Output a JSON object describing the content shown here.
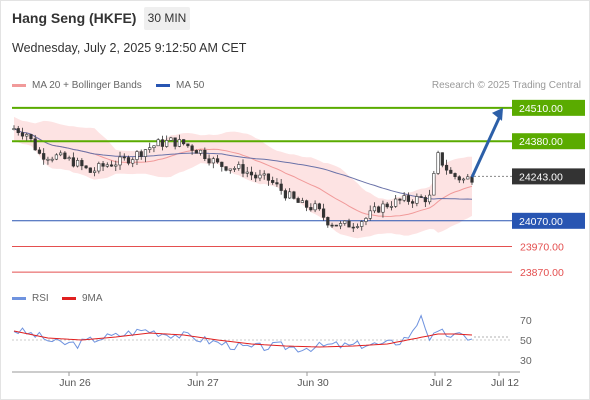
{
  "header": {
    "title": "Hang Seng (HKFE)",
    "timeframe": "30 MIN",
    "datetime": "Wednesday, July 2, 2025 9:12:50 AM CET"
  },
  "legend": {
    "bollinger": "MA 20 + Bollinger Bands",
    "ma50": "MA 50",
    "credit": "Research © 2025 Trading Central"
  },
  "rsi_legend": {
    "rsi": "RSI",
    "ma": "9MA"
  },
  "colors": {
    "resistance": "#5aab00",
    "current": "#333333",
    "pivot": "#2855b2",
    "support": "#e44f4f",
    "arrow": "#2c5fa8",
    "bollinger_band": "#fde3e3",
    "ma20": "#f19a9a",
    "ma50": "#6a72a8",
    "rsi": "#6f93df",
    "rsi_ma": "#e02020"
  },
  "chart_data": [
    {
      "type": "candlestick",
      "ylim": [
        23820,
        24560
      ],
      "x_ticks": [
        "Jun 26",
        "Jun 27",
        "Jun 30",
        "Jul 2",
        "Jul 12"
      ],
      "levels": [
        {
          "label": "24510.00",
          "value": 24510,
          "kind": "resistance"
        },
        {
          "label": "24380.00",
          "value": 24380,
          "kind": "resistance"
        },
        {
          "label": "24243.00",
          "value": 24243,
          "kind": "current"
        },
        {
          "label": "24070.00",
          "value": 24070,
          "kind": "pivot"
        },
        {
          "label": "23970.00",
          "value": 23970,
          "kind": "support"
        },
        {
          "label": "23870.00",
          "value": 23870,
          "kind": "support"
        }
      ],
      "target_arrow": {
        "from": 24240,
        "to": 24510
      },
      "close_path": [
        [
          0,
          24430
        ],
        [
          3,
          24410
        ],
        [
          6,
          24330
        ],
        [
          10,
          24320
        ],
        [
          14,
          24300
        ],
        [
          18,
          24260
        ],
        [
          22,
          24290
        ],
        [
          25,
          24300
        ],
        [
          28,
          24320
        ],
        [
          31,
          24350
        ],
        [
          34,
          24370
        ],
        [
          37,
          24380
        ],
        [
          40,
          24370
        ],
        [
          44,
          24340
        ],
        [
          48,
          24290
        ],
        [
          51,
          24280
        ],
        [
          54,
          24270
        ],
        [
          57,
          24240
        ],
        [
          60,
          24230
        ],
        [
          63,
          24190
        ],
        [
          66,
          24150
        ],
        [
          68,
          24130
        ],
        [
          71,
          24120
        ],
        [
          74,
          24070
        ],
        [
          77,
          24050
        ],
        [
          80,
          24060
        ],
        [
          83,
          24080
        ],
        [
          86,
          24120
        ],
        [
          89,
          24140
        ],
        [
          92,
          24150
        ],
        [
          95,
          24155
        ],
        [
          98,
          24160
        ],
        [
          100,
          24320
        ],
        [
          103,
          24250
        ],
        [
          106,
          24230
        ],
        [
          108,
          24240
        ]
      ]
    },
    {
      "type": "line",
      "title": "RSI",
      "yticks": [
        70,
        50,
        30
      ],
      "ylim": [
        20,
        80
      ],
      "rsi": [
        [
          0,
          60
        ],
        [
          5,
          55
        ],
        [
          10,
          47
        ],
        [
          15,
          46
        ],
        [
          20,
          52
        ],
        [
          24,
          54
        ],
        [
          28,
          58
        ],
        [
          31,
          60
        ],
        [
          35,
          57
        ],
        [
          39,
          55
        ],
        [
          43,
          52
        ],
        [
          47,
          48
        ],
        [
          51,
          45
        ],
        [
          55,
          42
        ],
        [
          59,
          43
        ],
        [
          63,
          44
        ],
        [
          67,
          42
        ],
        [
          71,
          43
        ],
        [
          75,
          45
        ],
        [
          79,
          44
        ],
        [
          83,
          46
        ],
        [
          87,
          45
        ],
        [
          91,
          49
        ],
        [
          94,
          57
        ],
        [
          96,
          76
        ],
        [
          98,
          52
        ],
        [
          101,
          57
        ],
        [
          104,
          54
        ],
        [
          107,
          53
        ]
      ],
      "rsi_ma": [
        [
          0,
          59
        ],
        [
          8,
          52
        ],
        [
          16,
          50
        ],
        [
          24,
          53
        ],
        [
          32,
          57
        ],
        [
          40,
          55
        ],
        [
          48,
          50
        ],
        [
          56,
          46
        ],
        [
          64,
          44
        ],
        [
          72,
          43
        ],
        [
          80,
          44
        ],
        [
          88,
          46
        ],
        [
          94,
          51
        ],
        [
          100,
          56
        ],
        [
          104,
          56
        ],
        [
          108,
          55
        ]
      ]
    }
  ]
}
